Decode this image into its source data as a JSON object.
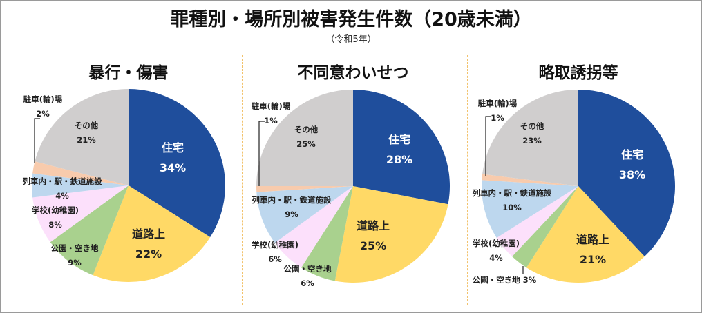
{
  "title": "罪種別・場所別被害発生件数（20歳未満）",
  "subtitle": "（令和5年）",
  "chart_data": [
    {
      "type": "pie",
      "title": "暴行・傷害",
      "unit": "%",
      "slices": [
        {
          "label": "住宅",
          "value": 34,
          "text": "34%",
          "color": "#1f4e9c"
        },
        {
          "label": "道路上",
          "value": 22,
          "text": "22%",
          "color": "#ffd966"
        },
        {
          "label": "公園・空き地",
          "value": 9,
          "text": "9%",
          "color": "#a9d18e"
        },
        {
          "label": "学校(幼稚園)",
          "value": 8,
          "text": "8%",
          "color": "#fce0fb"
        },
        {
          "label": "列車内・駅・鉄道施設",
          "value": 4,
          "text": "4%",
          "color": "#bdd7ee"
        },
        {
          "label": "駐車(輪)場",
          "value": 2,
          "text": "2%",
          "color": "#f8cbad"
        },
        {
          "label": "その他",
          "value": 21,
          "text": "21%",
          "color": "#d0cece"
        }
      ]
    },
    {
      "type": "pie",
      "title": "不同意わいせつ",
      "unit": "%",
      "slices": [
        {
          "label": "住宅",
          "value": 28,
          "text": "28%",
          "color": "#1f4e9c"
        },
        {
          "label": "道路上",
          "value": 25,
          "text": "25%",
          "color": "#ffd966"
        },
        {
          "label": "公園・空き地",
          "value": 6,
          "text": "6%",
          "color": "#a9d18e"
        },
        {
          "label": "学校(幼稚園)",
          "value": 6,
          "text": "6%",
          "color": "#fce0fb"
        },
        {
          "label": "列車内・駅・鉄道施設",
          "value": 9,
          "text": "9%",
          "color": "#bdd7ee"
        },
        {
          "label": "駐車(輪)場",
          "value": 1,
          "text": "1%",
          "color": "#f8cbad"
        },
        {
          "label": "その他",
          "value": 25,
          "text": "25%",
          "color": "#d0cece"
        }
      ]
    },
    {
      "type": "pie",
      "title": "略取誘拐等",
      "unit": "%",
      "slices": [
        {
          "label": "住宅",
          "value": 38,
          "text": "38%",
          "color": "#1f4e9c"
        },
        {
          "label": "道路上",
          "value": 21,
          "text": "21%",
          "color": "#ffd966"
        },
        {
          "label": "公園・空き地",
          "value": 3,
          "text": "3%",
          "color": "#a9d18e"
        },
        {
          "label": "学校(幼稚園)",
          "value": 4,
          "text": "4%",
          "color": "#fce0fb"
        },
        {
          "label": "列車内・駅・鉄道施設",
          "value": 10,
          "text": "10%",
          "color": "#bdd7ee"
        },
        {
          "label": "駐車(輪)場",
          "value": 1,
          "text": "1%",
          "color": "#f8cbad"
        },
        {
          "label": "その他",
          "value": 23,
          "text": "23%",
          "color": "#d0cece"
        }
      ]
    }
  ]
}
